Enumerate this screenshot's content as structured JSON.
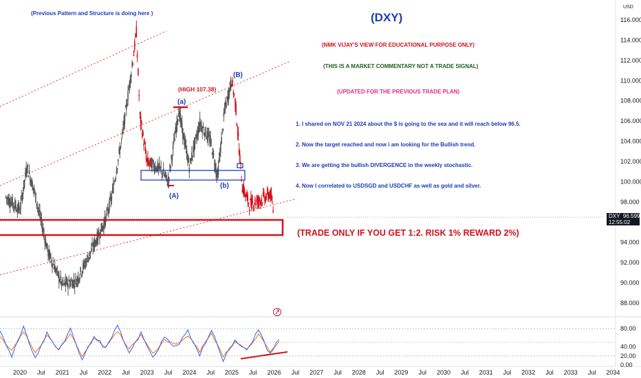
{
  "header": {
    "note_top_left": "(Previous Pattern and Structure is doing here )",
    "title": "(DXY)",
    "disclaimer_1": "(NMK VIJAY'S VIEW FOR EDUCATIONAL PURPOSE ONLY)",
    "disclaimer_2": "(THIS IS A MARKET COMMENTARY NOT A TRADE SIGNAL)",
    "disclaimer_3": "(UPDATED FOR THE PREVIOUS TRADE PLAN)"
  },
  "notes": [
    "1. I shared on NOV 21 2024 about the $ is going to the sea and it will reach below 96.5.",
    "2. Now the target reached and now i am looking for the Bullish trend.",
    "3. We are getting the bullish DIVERGENCE in the weekly stochastic.",
    "4. Now I correlated to USDSGD and USDCHF as well as gold and silver."
  ],
  "trade_note": "(TRADE ONLY IF YOU GET 1:2. RISK 1% REWARD 2%)",
  "high_label": "(HIGH 107.38)",
  "price_axis": {
    "currency": "USD",
    "ticks": [
      "116.000",
      "114.000",
      "112.000",
      "110.000",
      "108.000",
      "106.000",
      "104.000",
      "102.000",
      "100.000",
      "98.000",
      "94.000",
      "92.000",
      "90.000",
      "88.000"
    ]
  },
  "stoch_axis": {
    "ticks": [
      "80.00",
      "40.00",
      "20.00",
      "0.00"
    ]
  },
  "time_axis": {
    "ticks": [
      "2020",
      "Jul",
      "2021",
      "Jul",
      "2022",
      "Jul",
      "2023",
      "Jul",
      "2024",
      "Jul",
      "2025",
      "Jul",
      "2026",
      "Jul",
      "2027",
      "Jul",
      "2028",
      "Jul",
      "2029",
      "Jul",
      "2030",
      "Jul",
      "2031",
      "Jul",
      "2032",
      "Jul",
      "2033",
      "Jul",
      "2034"
    ]
  },
  "last_price": {
    "symbol": "DXY",
    "value": "96.599",
    "countdown": "12:55:02"
  },
  "wave_labels": {
    "a_small": "(a)",
    "A": "(A)",
    "b_small": "(b)",
    "B": "(B)"
  },
  "colors": {
    "title": "#1f3bb3",
    "notes": "#1f3bb3",
    "disclaimer_red": "#d0121b",
    "disclaimer_green": "#1e5e1e",
    "disclaimer_pink": "#e0288a",
    "trade_note": "#d0121b",
    "candle_gray": "#555555",
    "candle_red": "#d0121b",
    "channel": "#e0303a",
    "blue_box": "#1f3bb3",
    "stoch_k": "#2962ff",
    "stoch_d": "#ff6d00"
  },
  "chart_data": {
    "type": "line",
    "title": "(DXY)",
    "xlabel": "",
    "ylabel": "",
    "ylim": [
      86.5,
      117
    ],
    "x": [
      "2019-09",
      "2020-01",
      "2020-03",
      "2020-05",
      "2020-09",
      "2021-01",
      "2021-05",
      "2021-09",
      "2022-01",
      "2022-03",
      "2022-06",
      "2022-09",
      "2022-10",
      "2022-11",
      "2023-01",
      "2023-05",
      "2023-07",
      "2023-10",
      "2024-01",
      "2024-04",
      "2024-07",
      "2024-09",
      "2024-11",
      "2025-01",
      "2025-02",
      "2025-04",
      "2025-06",
      "2025-09",
      "2025-12",
      "2026-01"
    ],
    "series": [
      {
        "values": [
          98.5,
          97.2,
          101.5,
          99.2,
          93.0,
          89.8,
          90.2,
          93.0,
          96.0,
          98.5,
          104.5,
          112.0,
          114.8,
          106.5,
          102.0,
          101.2,
          100.0,
          107.0,
          101.5,
          105.8,
          104.0,
          100.5,
          107.0,
          110.0,
          108.0,
          99.5,
          97.8,
          98.2,
          98.8,
          96.6
        ]
      }
    ],
    "annotations": [
      "(HIGH 107.38)"
    ],
    "stochastic": {
      "y_ticks": [
        80,
        40,
        20,
        0
      ],
      "k_values": [
        75,
        20,
        85,
        15,
        70,
        30,
        80,
        10,
        65,
        35,
        85,
        25,
        70,
        15,
        60,
        40,
        75,
        20,
        80,
        10,
        55,
        30,
        78,
        22,
        70
      ],
      "d_values": [
        65,
        30,
        75,
        25,
        65,
        35,
        70,
        20,
        60,
        40,
        75,
        35,
        65,
        25,
        55,
        45,
        65,
        30,
        70,
        20,
        50,
        35,
        68,
        30,
        60
      ]
    }
  }
}
